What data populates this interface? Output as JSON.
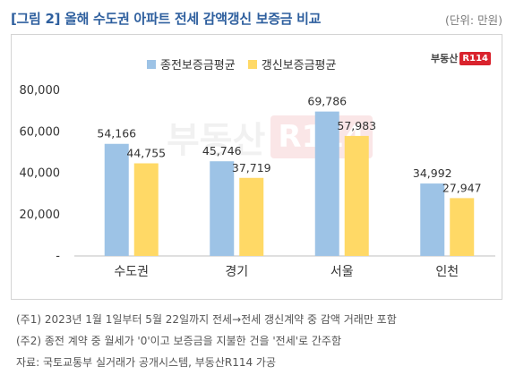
{
  "header": {
    "title": "[그림 2] 올해 수도권 아파트 전세 감액갱신 보증금 비교",
    "unit": "(단위: 만원)"
  },
  "brand": {
    "name": "부동산",
    "box": "R114"
  },
  "watermark": {
    "name": "부동산",
    "box": "R114"
  },
  "colors": {
    "series1": "#9dc3e6",
    "series2": "#ffd966",
    "title": "#2e5f9e",
    "brand_red": "#d9232d"
  },
  "chart_data": {
    "type": "bar",
    "categories": [
      "수도권",
      "경기",
      "서울",
      "인천"
    ],
    "series": [
      {
        "name": "종전보증금평균",
        "values": [
          54166,
          45746,
          69786,
          34992
        ]
      },
      {
        "name": "갱신보증금평균",
        "values": [
          44755,
          37719,
          57983,
          27947
        ]
      }
    ],
    "data_labels": [
      [
        "54,166",
        "45,746",
        "69,786",
        "34,992"
      ],
      [
        "44,755",
        "37,719",
        "57,983",
        "27,947"
      ]
    ],
    "y_ticks": [
      0,
      20000,
      40000,
      60000,
      80000
    ],
    "y_tick_labels": [
      "-",
      "20,000",
      "40,000",
      "60,000",
      "80,000"
    ],
    "ylim": [
      0,
      80000
    ],
    "grid": false,
    "legend_position": "top"
  },
  "notes": [
    "(주1) 2023년 1월 1일부터 5월 22일까지 전세→전세 갱신계약 중 감액 거래만 포함",
    "(주2) 종전 계약 중 월세가 '0'이고 보증금을 지불한 건을 '전세'로 간주함",
    "자료: 국토교통부 실거래가 공개시스템, 부동산R114 가공"
  ]
}
